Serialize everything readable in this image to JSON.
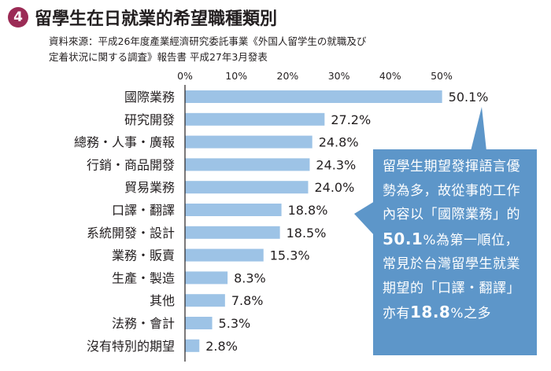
{
  "header": {
    "number": "4",
    "title": "留學生在日就業的希望職種類別",
    "source_line1": "資料來源：平成26年度產業經濟研究委託事業《外国人留学生の就職及び",
    "source_line2": "定着状況に関する調査》報告書 平成27年3月發表"
  },
  "callout": {
    "text_before": "留學生期望發揮語言優勢為多，故從事的工作內容以「國際業務」的",
    "value1": "50.1",
    "text_middle": "%為第一順位，常見於台灣留學生就業期望的「口譯・翻譯」亦有",
    "value2": "18.8",
    "text_after": "%之多"
  },
  "colors": {
    "bar": "#9dc3e6",
    "callout": "#5d96c9",
    "badge": "#9b2b55",
    "axis": "#231f20"
  },
  "chart_data": {
    "type": "bar",
    "orientation": "horizontal",
    "categories": [
      "國際業務",
      "研究開發",
      "總務・人事・廣報",
      "行銷・商品開發",
      "貿易業務",
      "口譯・翻譯",
      "系統開發・設計",
      "業務・販賣",
      "生產・製造",
      "其他",
      "法務・會計",
      "沒有特別的期望"
    ],
    "values": [
      50.1,
      27.2,
      24.8,
      24.3,
      24.0,
      18.8,
      18.5,
      15.3,
      8.3,
      7.8,
      5.3,
      2.8
    ],
    "value_labels": [
      "50.1%",
      "27.2%",
      "24.8%",
      "24.3%",
      "24.0%",
      "18.8%",
      "18.5%",
      "15.3%",
      "8.3%",
      "7.8%",
      "5.3%",
      "2.8%"
    ],
    "x_ticks": [
      0,
      10,
      20,
      30,
      40,
      50
    ],
    "x_tick_labels": [
      "0%",
      "10%",
      "20%",
      "30%",
      "40%",
      "50%"
    ],
    "xlim": [
      0,
      50
    ],
    "grid": false
  }
}
